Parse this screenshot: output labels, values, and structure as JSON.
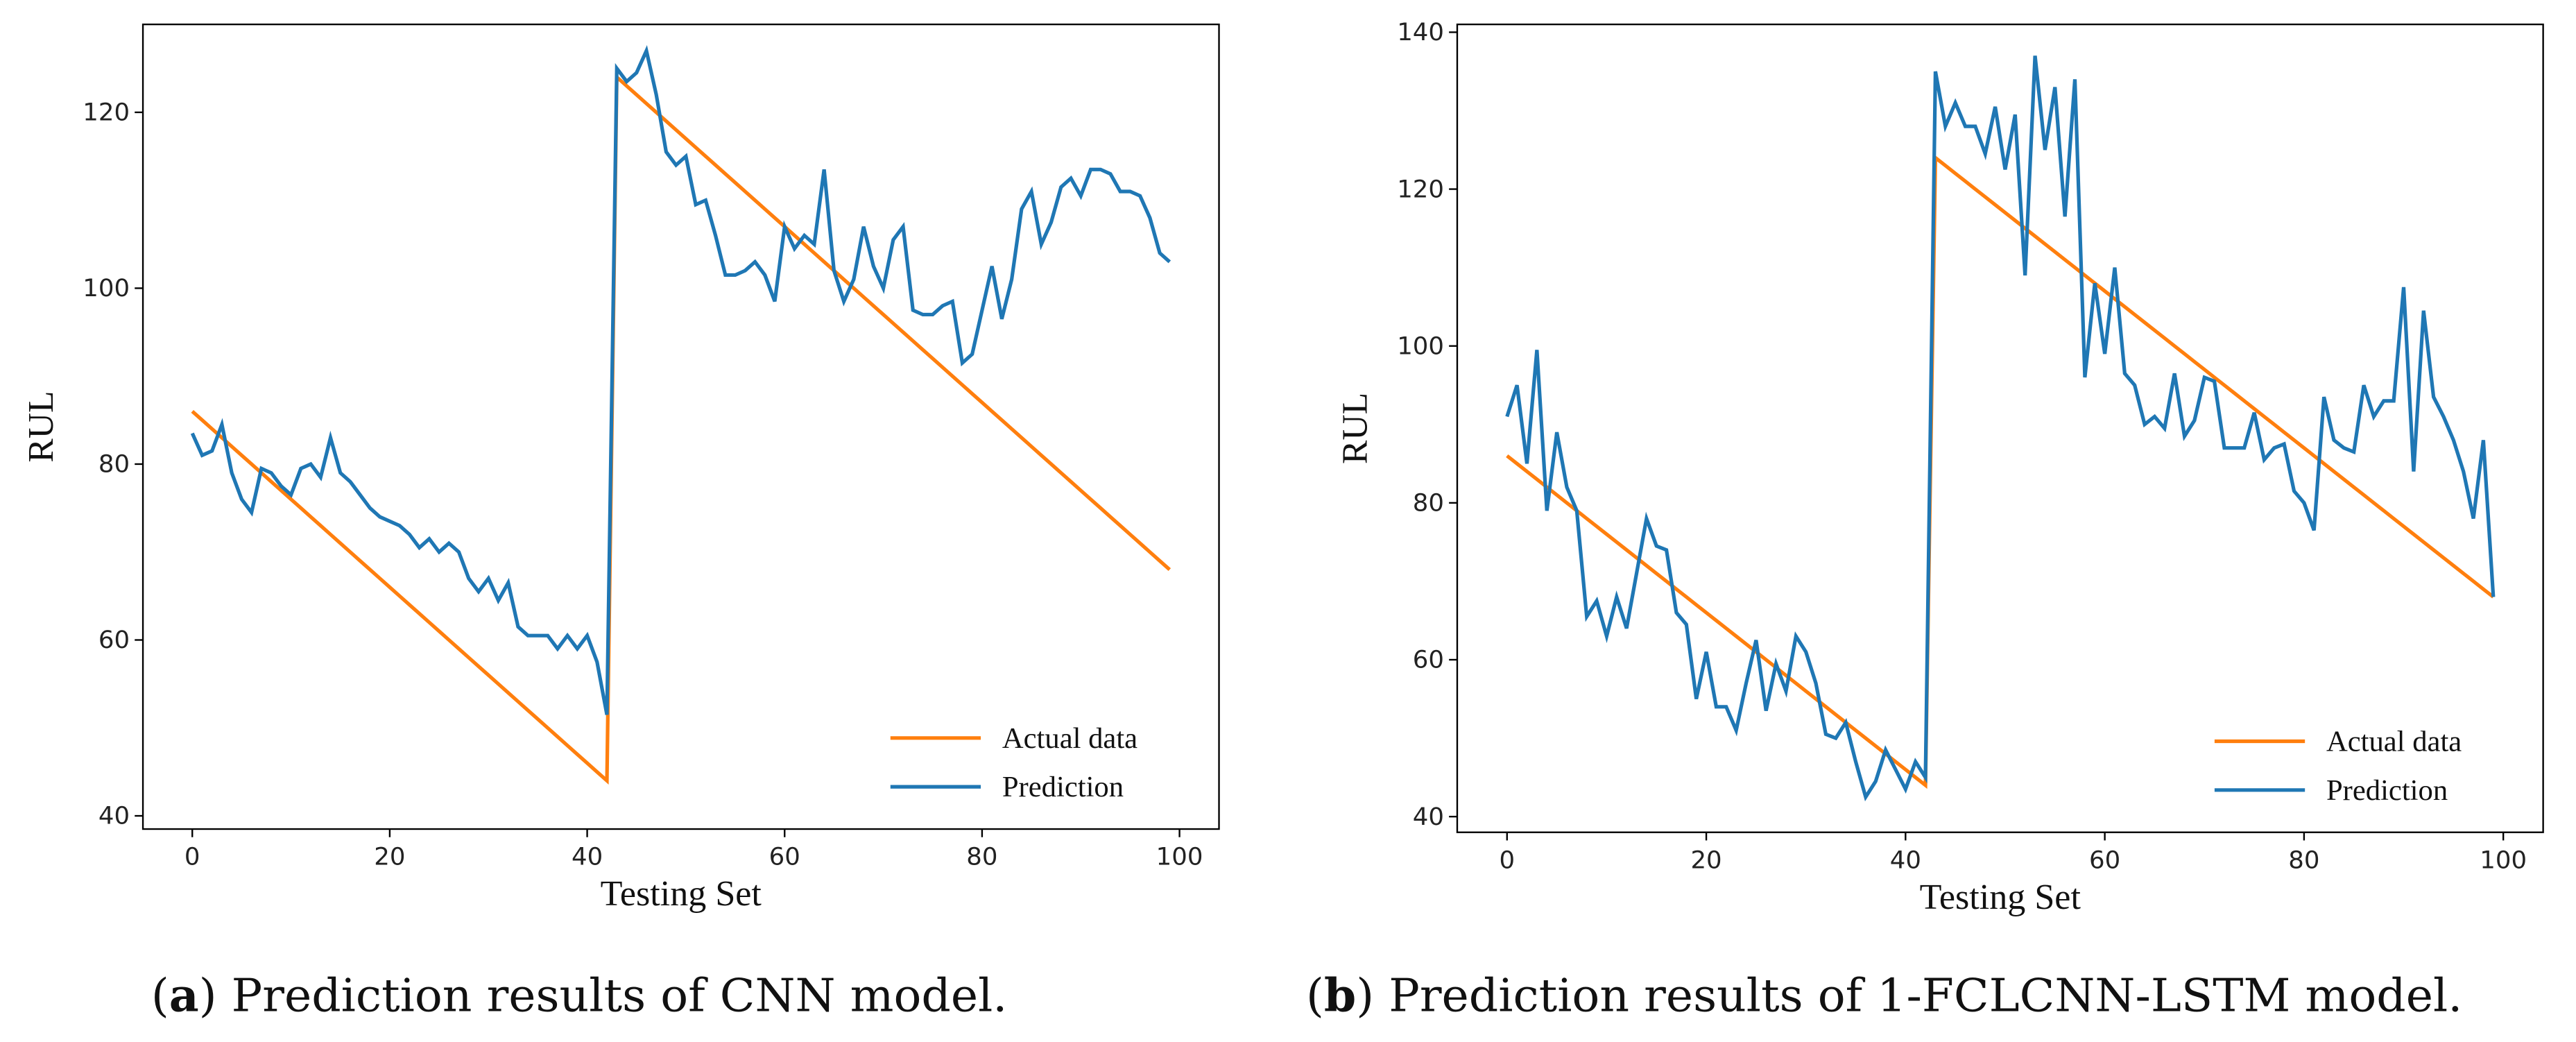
{
  "chart_data": [
    {
      "type": "line",
      "xlabel": "Testing Set",
      "ylabel": "RUL",
      "caption": {
        "open": "(",
        "label": "a",
        "rest": ") Prediction results of CNN model."
      },
      "xlim": [
        -5,
        104
      ],
      "ylim": [
        38.5,
        130
      ],
      "xticks": [
        0,
        20,
        40,
        60,
        80,
        100
      ],
      "yticks": [
        40,
        60,
        80,
        100,
        120
      ],
      "legend": "lower right",
      "x": [
        0,
        1,
        2,
        3,
        4,
        5,
        6,
        7,
        8,
        9,
        10,
        11,
        12,
        13,
        14,
        15,
        16,
        17,
        18,
        19,
        20,
        21,
        22,
        23,
        24,
        25,
        26,
        27,
        28,
        29,
        30,
        31,
        32,
        33,
        34,
        35,
        36,
        37,
        38,
        39,
        40,
        41,
        42,
        43,
        44,
        45,
        46,
        47,
        48,
        49,
        50,
        51,
        52,
        53,
        54,
        55,
        56,
        57,
        58,
        59,
        60,
        61,
        62,
        63,
        64,
        65,
        66,
        67,
        68,
        69,
        70,
        71,
        72,
        73,
        74,
        75,
        76,
        77,
        78,
        79,
        80,
        81,
        82,
        83,
        84,
        85,
        86,
        87,
        88,
        89,
        90,
        91,
        92,
        93,
        94,
        95,
        96,
        97,
        98,
        99
      ],
      "series": [
        {
          "name": "Actual data",
          "color": "#ff7f0e",
          "values": [
            86,
            85,
            84,
            83,
            82,
            81,
            80,
            79,
            78,
            77,
            76,
            75,
            74,
            73,
            72,
            71,
            70,
            69,
            68,
            67,
            66,
            65,
            64,
            63,
            62,
            61,
            60,
            59,
            58,
            57,
            56,
            55,
            54,
            53,
            52,
            51,
            50,
            49,
            48,
            47,
            46,
            45,
            44,
            124,
            123,
            122,
            121,
            120,
            119,
            118,
            117,
            116,
            115,
            114,
            113,
            112,
            111,
            110,
            109,
            108,
            107,
            106,
            105,
            104,
            103,
            102,
            101,
            100,
            99,
            98,
            97,
            96,
            95,
            94,
            93,
            92,
            91,
            90,
            89,
            88,
            87,
            86,
            85,
            84,
            83,
            82,
            81,
            80,
            79,
            78,
            77,
            76,
            75,
            74,
            73,
            72,
            71,
            70,
            69,
            68
          ]
        },
        {
          "name": "Prediction",
          "color": "#1f77b4",
          "values": [
            83.5,
            81,
            81.5,
            84.5,
            79,
            76,
            74.5,
            79.5,
            79,
            77.5,
            76.5,
            79.5,
            80,
            78.5,
            83,
            79,
            78,
            76.5,
            75,
            74,
            73.5,
            73,
            72,
            70.5,
            71.5,
            70,
            71,
            70,
            67,
            65.5,
            67,
            64.5,
            66.5,
            61.5,
            60.5,
            60.5,
            60.5,
            59,
            60.5,
            59,
            60.5,
            57.5,
            51.5,
            125,
            123.5,
            124.5,
            127,
            122,
            115.5,
            114,
            115,
            109.5,
            110,
            106,
            101.5,
            101.5,
            102,
            103,
            101.5,
            98.5,
            107,
            104.5,
            106,
            105,
            113.5,
            102,
            98.5,
            101,
            107,
            102.5,
            100,
            105.5,
            107,
            97.5,
            97,
            97,
            98,
            98.5,
            91.5,
            92.5,
            97.5,
            102.5,
            96.5,
            101,
            109,
            111,
            105,
            107.5,
            111.5,
            112.5,
            110.5,
            113.5,
            113.5,
            113,
            111,
            111,
            110.5,
            108,
            104,
            103
          ]
        }
      ]
    },
    {
      "type": "line",
      "xlabel": "Testing Set",
      "ylabel": "RUL",
      "caption": {
        "open": "(",
        "label": "b",
        "rest": ") Prediction results of 1-FCLCNN-LSTM model."
      },
      "xlim": [
        -5,
        104
      ],
      "ylim": [
        38,
        141
      ],
      "xticks": [
        0,
        20,
        40,
        60,
        80,
        100
      ],
      "yticks": [
        40,
        60,
        80,
        100,
        120,
        140
      ],
      "legend": "lower right",
      "x": [
        0,
        1,
        2,
        3,
        4,
        5,
        6,
        7,
        8,
        9,
        10,
        11,
        12,
        13,
        14,
        15,
        16,
        17,
        18,
        19,
        20,
        21,
        22,
        23,
        24,
        25,
        26,
        27,
        28,
        29,
        30,
        31,
        32,
        33,
        34,
        35,
        36,
        37,
        38,
        39,
        40,
        41,
        42,
        43,
        44,
        45,
        46,
        47,
        48,
        49,
        50,
        51,
        52,
        53,
        54,
        55,
        56,
        57,
        58,
        59,
        60,
        61,
        62,
        63,
        64,
        65,
        66,
        67,
        68,
        69,
        70,
        71,
        72,
        73,
        74,
        75,
        76,
        77,
        78,
        79,
        80,
        81,
        82,
        83,
        84,
        85,
        86,
        87,
        88,
        89,
        90,
        91,
        92,
        93,
        94,
        95,
        96,
        97,
        98,
        99
      ],
      "series": [
        {
          "name": "Actual data",
          "color": "#ff7f0e",
          "values": [
            86,
            85,
            84,
            83,
            82,
            81,
            80,
            79,
            78,
            77,
            76,
            75,
            74,
            73,
            72,
            71,
            70,
            69,
            68,
            67,
            66,
            65,
            64,
            63,
            62,
            61,
            60,
            59,
            58,
            57,
            56,
            55,
            54,
            53,
            52,
            51,
            50,
            49,
            48,
            47,
            46,
            45,
            44,
            124,
            123,
            122,
            121,
            120,
            119,
            118,
            117,
            116,
            115,
            114,
            113,
            112,
            111,
            110,
            109,
            108,
            107,
            106,
            105,
            104,
            103,
            102,
            101,
            100,
            99,
            98,
            97,
            96,
            95,
            94,
            93,
            92,
            91,
            90,
            89,
            88,
            87,
            86,
            85,
            84,
            83,
            82,
            81,
            80,
            79,
            78,
            77,
            76,
            75,
            74,
            73,
            72,
            71,
            70,
            69,
            68
          ]
        },
        {
          "name": "Prediction",
          "color": "#1f77b4",
          "values": [
            91,
            95,
            85,
            99.5,
            79,
            89,
            82,
            79,
            65.5,
            67.5,
            63,
            68,
            64,
            71,
            78,
            74.5,
            74,
            66,
            64.5,
            55,
            61,
            54,
            54,
            51,
            57,
            62.5,
            53.5,
            59.5,
            56,
            63,
            61,
            57,
            50.5,
            50,
            52,
            47,
            42.5,
            44.5,
            48.5,
            46,
            43.5,
            47,
            45,
            135,
            128,
            131,
            128,
            128,
            124.5,
            130.5,
            122.5,
            129.5,
            109,
            137,
            125,
            133,
            116.5,
            134,
            96,
            108,
            99,
            110,
            96.5,
            95,
            90,
            91,
            89.5,
            96.5,
            88.5,
            90.5,
            96,
            95.5,
            87,
            87,
            87,
            91.5,
            85.5,
            87,
            87.5,
            81.5,
            80,
            76.5,
            93.5,
            88,
            87,
            86.5,
            95,
            91,
            93,
            93,
            107.5,
            84,
            104.5,
            93.5,
            91,
            88,
            84,
            78,
            88,
            68
          ]
        }
      ]
    }
  ]
}
